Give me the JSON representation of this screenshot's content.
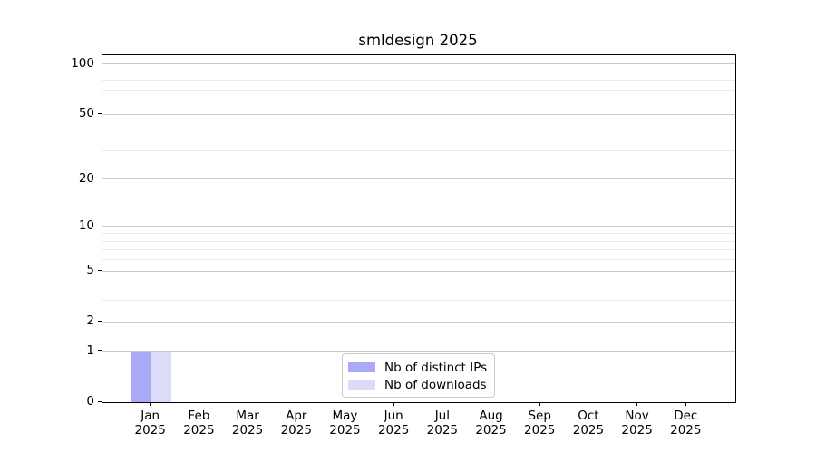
{
  "chart_data": {
    "type": "bar",
    "title": "smldesign 2025",
    "categories": [
      {
        "month": "Jan",
        "year": "2025"
      },
      {
        "month": "Feb",
        "year": "2025"
      },
      {
        "month": "Mar",
        "year": "2025"
      },
      {
        "month": "Apr",
        "year": "2025"
      },
      {
        "month": "May",
        "year": "2025"
      },
      {
        "month": "Jun",
        "year": "2025"
      },
      {
        "month": "Jul",
        "year": "2025"
      },
      {
        "month": "Aug",
        "year": "2025"
      },
      {
        "month": "Sep",
        "year": "2025"
      },
      {
        "month": "Oct",
        "year": "2025"
      },
      {
        "month": "Nov",
        "year": "2025"
      },
      {
        "month": "Dec",
        "year": "2025"
      }
    ],
    "series": [
      {
        "name": "Nb of distinct IPs",
        "color": "#a9a9f5",
        "values": [
          1,
          0,
          0,
          0,
          0,
          0,
          0,
          0,
          0,
          0,
          0,
          0
        ]
      },
      {
        "name": "Nb of downloads",
        "color": "#dcdcf8",
        "values": [
          1,
          0,
          0,
          0,
          0,
          0,
          0,
          0,
          0,
          0,
          0,
          0
        ]
      }
    ],
    "y_scale": "log1p",
    "y_major_ticks": [
      0,
      1,
      2,
      5,
      10,
      20,
      50,
      100
    ],
    "y_minor_ticks": [
      3,
      4,
      6,
      7,
      8,
      9,
      30,
      40,
      60,
      70,
      80,
      90
    ],
    "ylim": [
      0,
      113.3
    ],
    "grid": true,
    "legend_position": "lower center"
  },
  "colors": {
    "background": "#ffffff",
    "axis": "#000000",
    "major_grid": "#c9c9c9",
    "minor_grid": "#ebebeb",
    "text": "#000000",
    "legend_border": "#cccccc"
  }
}
